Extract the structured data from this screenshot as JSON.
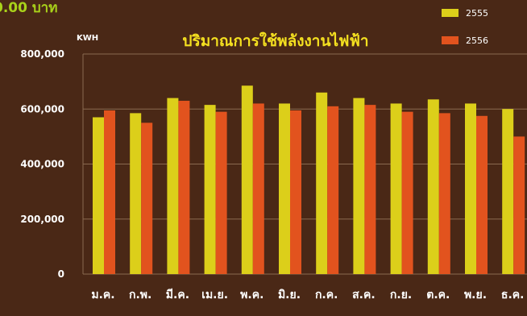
{
  "header": {
    "cropped_text": "0.00 บาท"
  },
  "colors": {
    "background": "#4a2816",
    "series_2555": "#dccf1a",
    "series_2556": "#e2531e",
    "title": "#f4e020",
    "header_text": "#a9d21a",
    "axis_text": "#ffffff",
    "grid": "#8a6a50"
  },
  "chart_data": {
    "type": "bar",
    "title": "ปริมาณการใช้พลังงานไฟฟ้า",
    "unit_label": "KWH",
    "xlabel": "",
    "ylabel": "",
    "ylim": [
      0,
      800000
    ],
    "yticks": [
      0,
      200000,
      400000,
      600000,
      800000
    ],
    "ytick_labels": [
      "0",
      "200,000",
      "400,000",
      "600,000",
      "800,000"
    ],
    "grid": true,
    "legend": "top-right",
    "categories": [
      "ม.ค.",
      "ก.พ.",
      "มี.ค.",
      "เม.ย.",
      "พ.ค.",
      "มิ.ย.",
      "ก.ค.",
      "ส.ค.",
      "ก.ย.",
      "ต.ค.",
      "พ.ย.",
      "ธ.ค."
    ],
    "series": [
      {
        "name": "2555",
        "values": [
          570000,
          585000,
          640000,
          615000,
          685000,
          620000,
          660000,
          640000,
          620000,
          635000,
          620000,
          600000
        ]
      },
      {
        "name": "2556",
        "values": [
          595000,
          550000,
          630000,
          590000,
          620000,
          595000,
          610000,
          615000,
          590000,
          585000,
          575000,
          500000
        ]
      }
    ]
  }
}
